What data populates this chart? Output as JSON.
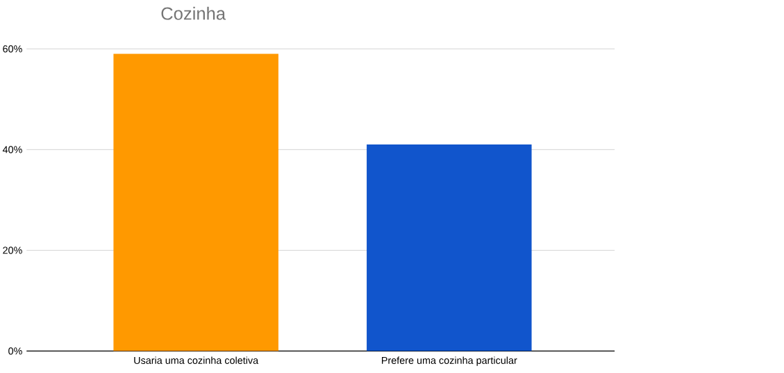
{
  "chart_data": {
    "type": "bar",
    "title": "Cozinha",
    "categories": [
      "Usaria uma cozinha coletiva",
      "Prefere uma cozinha particular"
    ],
    "values": [
      59,
      41
    ],
    "colors": [
      "#ff9900",
      "#1155cc"
    ],
    "ylim": [
      0,
      60
    ],
    "yticks": [
      {
        "value": 0,
        "label": "0%"
      },
      {
        "value": 20,
        "label": "20%"
      },
      {
        "value": 40,
        "label": "40%"
      },
      {
        "value": 60,
        "label": "60%"
      }
    ],
    "grid": "y"
  }
}
